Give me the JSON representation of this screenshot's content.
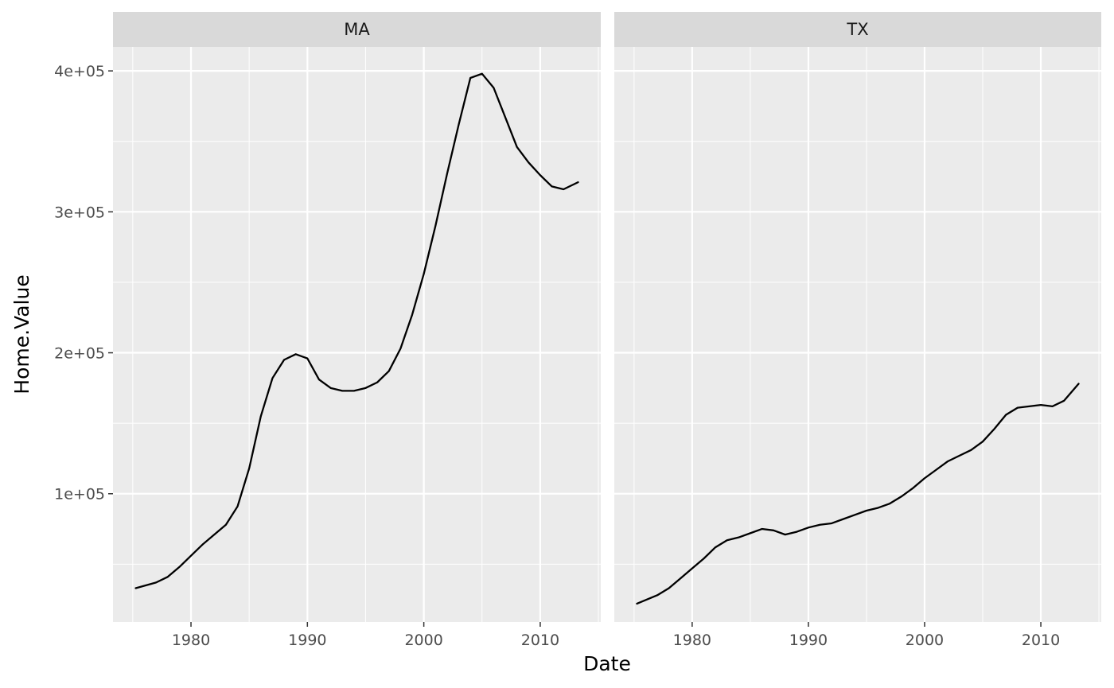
{
  "chart_data": {
    "type": "line",
    "facet_by": "State",
    "xlabel": "Date",
    "ylabel": "Home.Value",
    "xlim": [
      1973.3,
      2015.2
    ],
    "ylim": [
      9000,
      417000
    ],
    "x_ticks": [
      1980,
      1990,
      2000,
      2010
    ],
    "x_tick_labels": [
      "1980",
      "1990",
      "2000",
      "2010"
    ],
    "x_minor_ticks": [
      1975,
      1985,
      1995,
      2005,
      2015
    ],
    "y_ticks": [
      100000,
      200000,
      300000,
      400000
    ],
    "y_tick_labels": [
      "1e+05",
      "2e+05",
      "3e+05",
      "4e+05"
    ],
    "y_minor_ticks": [
      50000,
      150000,
      250000,
      350000
    ],
    "grid": true,
    "colors": {
      "panel_background": "#ebebeb",
      "strip_background": "#d9d9d9",
      "grid_line": "#ffffff",
      "line": "#000000"
    },
    "panels": [
      {
        "strip_label": "MA",
        "x": [
          1975.25,
          1977,
          1978,
          1979,
          1980,
          1981,
          1982,
          1983,
          1984,
          1985,
          1986,
          1987,
          1988,
          1989,
          1990,
          1991,
          1992,
          1993,
          1994,
          1995,
          1996,
          1997,
          1998,
          1999,
          2000,
          2001,
          2002,
          2003,
          2004,
          2005,
          2006,
          2007,
          2008,
          2009,
          2010,
          2011,
          2012,
          2013.25
        ],
        "y": [
          33000,
          37000,
          41000,
          48000,
          56000,
          64000,
          71000,
          78000,
          91000,
          118000,
          155000,
          182000,
          195000,
          199000,
          196000,
          181000,
          175000,
          173000,
          173000,
          175000,
          179000,
          187000,
          203000,
          227000,
          256000,
          290000,
          327000,
          362000,
          395000,
          398000,
          388000,
          367000,
          346000,
          335000,
          326000,
          318000,
          316000,
          321000
        ]
      },
      {
        "strip_label": "TX",
        "x": [
          1975.25,
          1977,
          1978,
          1979,
          1980,
          1981,
          1982,
          1983,
          1984,
          1985,
          1986,
          1987,
          1988,
          1989,
          1990,
          1991,
          1992,
          1993,
          1994,
          1995,
          1996,
          1997,
          1998,
          1999,
          2000,
          2001,
          2002,
          2003,
          2004,
          2005,
          2006,
          2007,
          2008,
          2009,
          2010,
          2011,
          2012,
          2013.25
        ],
        "y": [
          22000,
          28000,
          33000,
          40000,
          47000,
          54000,
          62000,
          67000,
          69000,
          72000,
          75000,
          74000,
          71000,
          73000,
          76000,
          78000,
          79000,
          82000,
          85000,
          88000,
          90000,
          93000,
          98000,
          104000,
          111000,
          117000,
          123000,
          127000,
          131000,
          137000,
          146000,
          156000,
          161000,
          162000,
          163000,
          162000,
          166000,
          178000
        ]
      }
    ]
  }
}
